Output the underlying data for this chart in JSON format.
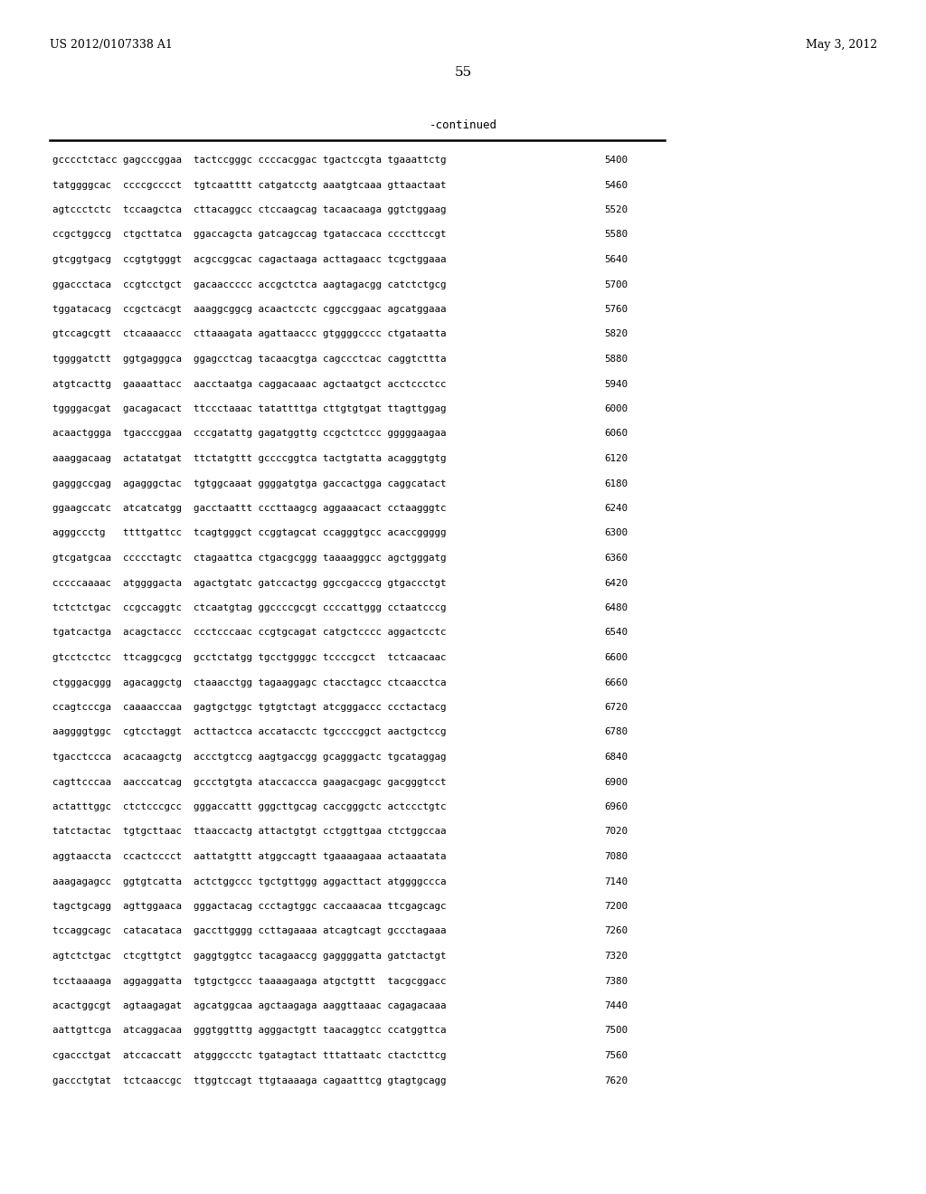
{
  "header_left": "US 2012/0107338 A1",
  "header_right": "May 3, 2012",
  "page_number": "55",
  "continued_label": "-continued",
  "background_color": "#ffffff",
  "text_color": "#000000",
  "sequence_lines": [
    [
      "gcccctctacc gagcccggaa  tactccgggc ccccacggac tgactccgta tgaaattctg",
      "5400"
    ],
    [
      "tatggggcac  ccccgcccct  tgtcaatttt catgatcctg aaatgtcaaa gttaactaat",
      "5460"
    ],
    [
      "agtccctctc  tccaagctca  cttacaggcc ctccaagcag tacaacaaga ggtctggaag",
      "5520"
    ],
    [
      "ccgctggccg  ctgcttatca  ggaccagcta gatcagccag tgataccaca ccccttccgt",
      "5580"
    ],
    [
      "gtcggtgacg  ccgtgtgggt  acgccggcac cagactaaga acttagaacc tcgctggaaa",
      "5640"
    ],
    [
      "ggaccctaca  ccgtcctgct  gacaaccccc accgctctca aagtagacgg catctctgcg",
      "5700"
    ],
    [
      "tggatacacg  ccgctcacgt  aaaggcggcg acaactcctc cggccggaac agcatggaaa",
      "5760"
    ],
    [
      "gtccagcgtt  ctcaaaaccc  cttaaagata agattaaccc gtggggcccc ctgataatta",
      "5820"
    ],
    [
      "tggggatctt  ggtgagggca  ggagcctcag tacaacgtga cagccctcac caggtcttta",
      "5880"
    ],
    [
      "atgtcacttg  gaaaattacc  aacctaatga caggacaaac agctaatgct acctccctcc",
      "5940"
    ],
    [
      "tggggacgat  gacagacact  ttccctaaac tatattttga cttgtgtgat ttagttggag",
      "6000"
    ],
    [
      "acaactggga  tgacccggaa  cccgatattg gagatggttg ccgctctccc gggggaagaa",
      "6060"
    ],
    [
      "aaaggacaag  actatatgat  ttctatgttt gccccggtca tactgtatta acagggtgtg",
      "6120"
    ],
    [
      "gagggccgag  agagggctac  tgtggcaaat ggggatgtga gaccactgga caggcatact",
      "6180"
    ],
    [
      "ggaagccatc  atcatcatgg  gacctaattt cccttaagcg aggaaacact cctaagggtc",
      "6240"
    ],
    [
      "agggccctg   ttttgattcc  tcagtgggct ccggtagcat ccagggtgcc acaccggggg",
      "6300"
    ],
    [
      "gtcgatgcaa  ccccctagtc  ctagaattca ctgacgcggg taaaagggcc agctgggatg",
      "6360"
    ],
    [
      "cccccaaaac  atggggacta  agactgtatc gatccactgg ggccgacccg gtgaccctgt",
      "6420"
    ],
    [
      "tctctctgac  ccgccaggtc  ctcaatgtag ggccccgcgt ccccattggg cctaatcccg",
      "6480"
    ],
    [
      "tgatcactga  acagctaccc  ccctcccaac ccgtgcagat catgctcccc aggactcctc",
      "6540"
    ],
    [
      "gtcctcctcc  ttcaggcgcg  gcctctatgg tgcctggggc tccccgcct  tctcaacaac",
      "6600"
    ],
    [
      "ctgggacggg  agacaggctg  ctaaacctgg tagaaggagc ctacctagcc ctcaacctca",
      "6660"
    ],
    [
      "ccagtcccga  caaaacccaa  gagtgctggc tgtgtctagt atcgggaccc ccctactacg",
      "6720"
    ],
    [
      "aaggggtggc  cgtcctaggt  acttactcca accatacctc tgccccggct aactgctccg",
      "6780"
    ],
    [
      "tgacctccca  acacaagctg  accctgtccg aagtgaccgg gcagggactc tgcataggag",
      "6840"
    ],
    [
      "cagttcccaa  aacccatcag  gccctgtgta ataccaccca gaagacgagc gacgggtcct",
      "6900"
    ],
    [
      "actatttggc  ctctcccgcc  gggaccattt gggcttgcag caccgggctc actccctgtc",
      "6960"
    ],
    [
      "tatctactac  tgtgcttaac  ttaaccactg attactgtgt cctggttgaa ctctggccaa",
      "7020"
    ],
    [
      "aggtaaccta  ccactcccct  aattatgttt atggccagtt tgaaaagaaa actaaatata",
      "7080"
    ],
    [
      "aaagagagcc  ggtgtcatta  actctggccc tgctgttggg aggacttact atggggccca",
      "7140"
    ],
    [
      "tagctgcagg  agttggaaca  gggactacag ccctagtggc caccaaacaa ttcgagcagc",
      "7200"
    ],
    [
      "tccaggcagc  catacataca  gaccttgggg ccttagaaaa atcagtcagt gccctagaaa",
      "7260"
    ],
    [
      "agtctctgac  ctcgttgtct  gaggtggtcc tacagaaccg gaggggatta gatctactgt",
      "7320"
    ],
    [
      "tcctaaaaga  aggaggatta  tgtgctgccc taaaagaaga atgctgttt  tacgcggacc",
      "7380"
    ],
    [
      "acactggcgt  agtaagagat  agcatggcaa agctaagaga aaggttaaac cagagacaaa",
      "7440"
    ],
    [
      "aattgttcga  atcaggacaa  gggtggtttg agggactgtt taacaggtcc ccatggttca",
      "7500"
    ],
    [
      "cgaccctgat  atccaccatt  atgggccctc tgatagtact tttattaatc ctactcttcg",
      "7560"
    ],
    [
      "gaccctgtat  tctcaaccgc  ttggtccagt ttgtaaaaga cagaatttcg gtagtgcagg",
      "7620"
    ]
  ]
}
